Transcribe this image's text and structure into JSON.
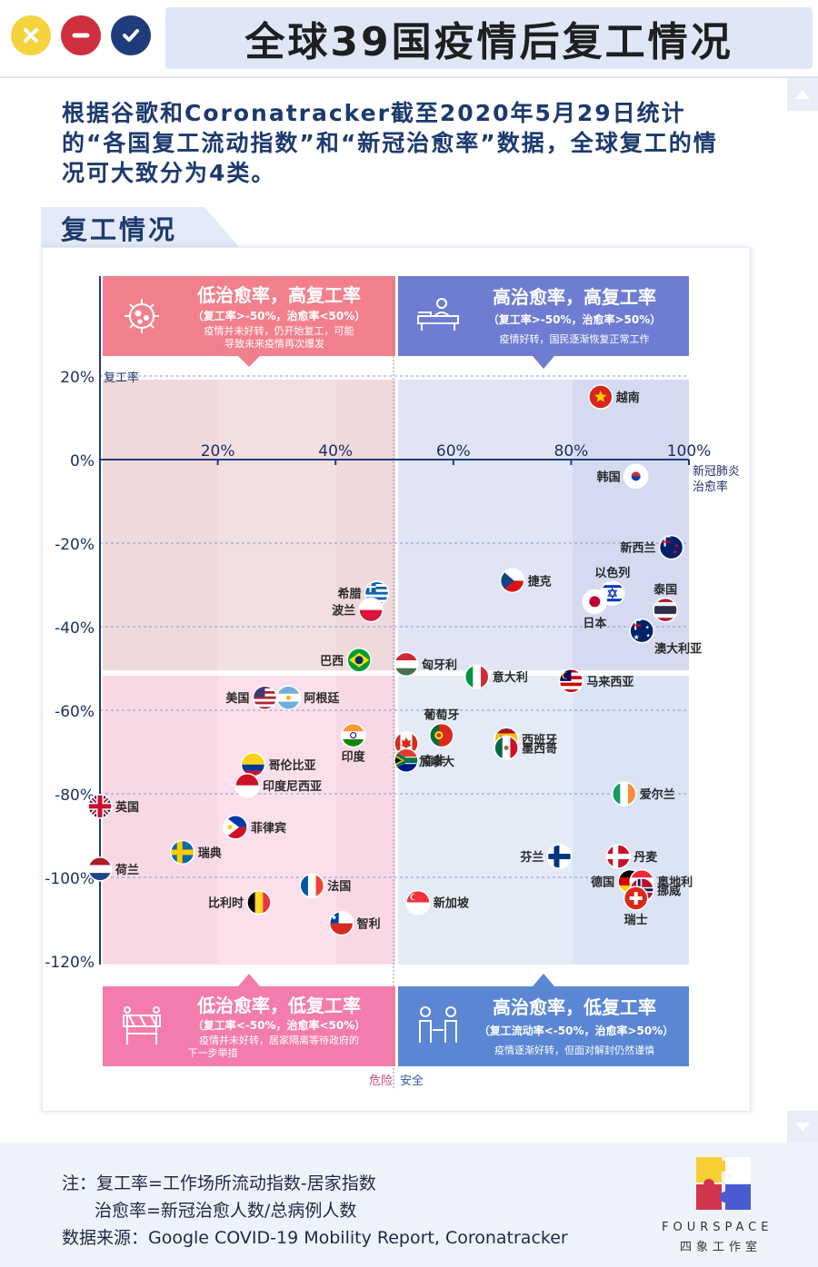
{
  "title": "全球39国疫情后复工情况",
  "window_controls": {
    "close_icon": "close-icon",
    "minimize_icon": "minus-icon",
    "confirm_icon": "check-icon",
    "close_color": "#f5d33c",
    "minimize_color": "#cf2e3c",
    "confirm_color": "#1f3c7c"
  },
  "intro": "根据谷歌和Coronatracker截至2020年5月29日统计的“各国复工流动指数”和“新冠治愈率”数据，全球复工的情况可大致分为4类。",
  "section_title": "复工情况",
  "quadrants": {
    "top_left": {
      "title": "低治愈率，高复工率",
      "condition": "（复工率>-50%，治愈率<50%）",
      "desc": [
        "疫情并未好转，仍开始复工，可能",
        "导致未来疫情再次爆发"
      ],
      "icon": "virus-icon",
      "color": "#f2808c"
    },
    "top_right": {
      "title": "高治愈率，高复工率",
      "condition": "（复工率>-50%，治愈率>50%）",
      "desc": [
        "疫情好转，国民逐渐恢复正常工作"
      ],
      "icon": "office-worker-icon",
      "color": "#6e7dd2"
    },
    "bottom_left": {
      "title": "低治愈率，低复工率",
      "condition": "（复工率<-50%，治愈率<50%）",
      "desc": [
        "疫情并未好转，居家隔离等待政府的",
        "下一步举措"
      ],
      "icon": "roadblock-icon",
      "color": "#f37cac"
    },
    "bottom_right": {
      "title": "高治愈率，低复工率",
      "condition": "（复工流动率<-50%，治愈率>50%）",
      "desc": [
        "疫情逐渐好转，但面对解封仍然谨慎"
      ],
      "icon": "people-distance-icon",
      "color": "#5b86d4"
    }
  },
  "chart_data": {
    "type": "scatter",
    "title": "复工情况",
    "xlabel": "新冠肺炎治愈率",
    "ylabel": "复工率",
    "xlim": [
      0,
      100
    ],
    "ylim": [
      -120,
      20
    ],
    "x_ticks": [
      "20%",
      "40%",
      "60%",
      "80%",
      "100%"
    ],
    "y_ticks": [
      "20%",
      "0%",
      "-20%",
      "-40%",
      "-60%",
      "-80%",
      "-100%",
      "-120%"
    ],
    "x_threshold": 50,
    "y_threshold": -50,
    "danger_label": "危险",
    "safe_label": "安全",
    "points": [
      {
        "name": "越南",
        "x": 85,
        "y": 15,
        "label_side": "right",
        "flag": "vietnam"
      },
      {
        "name": "韩国",
        "x": 91,
        "y": -4,
        "label_side": "left",
        "flag": "korea"
      },
      {
        "name": "新西兰",
        "x": 97,
        "y": -21,
        "label_side": "left",
        "flag": "newzealand"
      },
      {
        "name": "捷克",
        "x": 70,
        "y": -29,
        "label_side": "right",
        "flag": "czech"
      },
      {
        "name": "以色列",
        "x": 87,
        "y": -32,
        "label_side": "above",
        "flag": "israel"
      },
      {
        "name": "日本",
        "x": 84,
        "y": -34,
        "label_side": "below",
        "flag": "japan"
      },
      {
        "name": "泰国",
        "x": 96,
        "y": -36,
        "label_side": "above",
        "flag": "thailand"
      },
      {
        "name": "澳大利亚",
        "x": 92,
        "y": -41,
        "label_side": "belowright",
        "flag": "australia"
      },
      {
        "name": "希腊",
        "x": 47,
        "y": -32,
        "label_side": "left",
        "flag": "greece"
      },
      {
        "name": "波兰",
        "x": 46,
        "y": -36,
        "label_side": "left",
        "flag": "poland"
      },
      {
        "name": "巴西",
        "x": 44,
        "y": -48,
        "label_side": "left",
        "flag": "brazil"
      },
      {
        "name": "匈牙利",
        "x": 52,
        "y": -49,
        "label_side": "right",
        "flag": "hungary"
      },
      {
        "name": "意大利",
        "x": 64,
        "y": -52,
        "label_side": "right",
        "flag": "italy"
      },
      {
        "name": "马来西亚",
        "x": 80,
        "y": -53,
        "label_side": "right",
        "flag": "malaysia"
      },
      {
        "name": "美国",
        "x": 28,
        "y": -57,
        "label_side": "left",
        "flag": "usa"
      },
      {
        "name": "阿根廷",
        "x": 32,
        "y": -57,
        "label_side": "right",
        "flag": "argentina"
      },
      {
        "name": "葡萄牙",
        "x": 58,
        "y": -66,
        "label_side": "above",
        "flag": "portugal"
      },
      {
        "name": "印度",
        "x": 43,
        "y": -66,
        "label_side": "below",
        "flag": "india"
      },
      {
        "name": "西班牙",
        "x": 69,
        "y": -67,
        "label_side": "right",
        "flag": "spain"
      },
      {
        "name": "加拿大",
        "x": 52,
        "y": -68,
        "label_side": "belowright",
        "flag": "canada"
      },
      {
        "name": "墨西哥",
        "x": 69,
        "y": -69,
        "label_side": "right",
        "flag": "mexico"
      },
      {
        "name": "南非",
        "x": 52,
        "y": -72,
        "label_side": "right",
        "flag": "southafrica"
      },
      {
        "name": "哥伦比亚",
        "x": 26,
        "y": -73,
        "label_side": "right",
        "flag": "colombia"
      },
      {
        "name": "印度尼西亚",
        "x": 25,
        "y": -78,
        "label_side": "right",
        "flag": "indonesia"
      },
      {
        "name": "爱尔兰",
        "x": 89,
        "y": -80,
        "label_side": "right",
        "flag": "ireland"
      },
      {
        "name": "英国",
        "x": 0,
        "y": -83,
        "label_side": "right",
        "flag": "uk"
      },
      {
        "name": "菲律宾",
        "x": 23,
        "y": -88,
        "label_side": "right",
        "flag": "philippines"
      },
      {
        "name": "芬兰",
        "x": 78,
        "y": -95,
        "label_side": "left",
        "flag": "finland"
      },
      {
        "name": "丹麦",
        "x": 88,
        "y": -95,
        "label_side": "right",
        "flag": "denmark"
      },
      {
        "name": "瑞典",
        "x": 14,
        "y": -94,
        "label_side": "right",
        "flag": "sweden"
      },
      {
        "name": "荷兰",
        "x": 0,
        "y": -98,
        "label_side": "right",
        "flag": "netherlands"
      },
      {
        "name": "德国",
        "x": 90,
        "y": -101,
        "label_side": "left",
        "flag": "germany"
      },
      {
        "name": "奥地利",
        "x": 92,
        "y": -101,
        "label_side": "right",
        "flag": "austria"
      },
      {
        "name": "挪威",
        "x": 92,
        "y": -103,
        "label_side": "right",
        "flag": "norway"
      },
      {
        "name": "瑞士",
        "x": 91,
        "y": -105,
        "label_side": "below",
        "flag": "switzerland"
      },
      {
        "name": "法国",
        "x": 36,
        "y": -102,
        "label_side": "right",
        "flag": "france"
      },
      {
        "name": "新加坡",
        "x": 54,
        "y": -106,
        "label_side": "right",
        "flag": "singapore"
      },
      {
        "name": "比利时",
        "x": 27,
        "y": -106,
        "label_side": "left",
        "flag": "belgium"
      },
      {
        "name": "智利",
        "x": 41,
        "y": -111,
        "label_side": "right",
        "flag": "chile"
      }
    ]
  },
  "footer": {
    "note_line1": "注：复工率=工作场所流动指数-居家指数",
    "note_line2": "治愈率=新冠治愈人数/总病例人数",
    "source": "数据来源：Google COVID-19 Mobility Report, Coronatracker",
    "logo_en": "FOURSPACE",
    "logo_cn": "四象工作室",
    "logo_icon": "puzzle-logo-icon"
  }
}
